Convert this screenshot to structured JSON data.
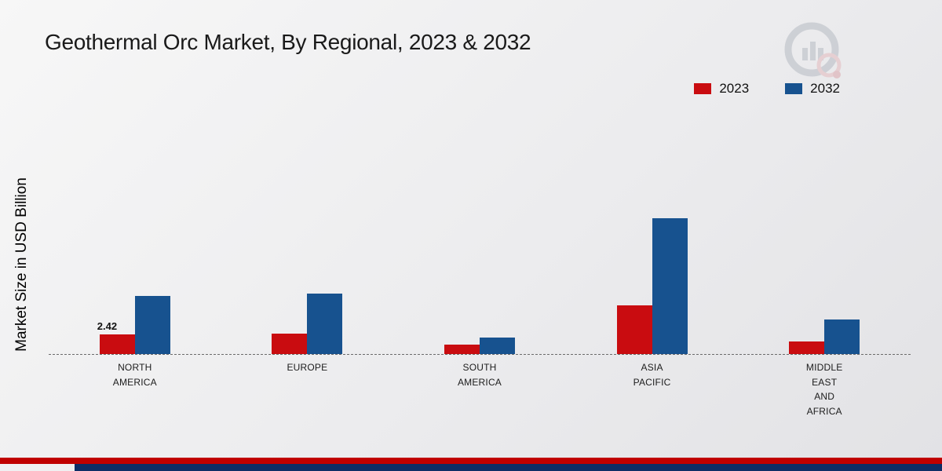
{
  "title": "Geothermal Orc Market, By Regional, 2023 & 2032",
  "y_axis_label": "Market Size in USD Billion",
  "legend": {
    "items": [
      {
        "label": "2023",
        "color": "#c90c10"
      },
      {
        "label": "2032",
        "color": "#17528f"
      }
    ]
  },
  "colors": {
    "bar_2023": "#c90c10",
    "bar_2032": "#17528f",
    "footer_red": "#c00000",
    "footer_navy": "#0d2d66"
  },
  "chart_data": {
    "type": "bar",
    "title": "Geothermal Orc Market, By Regional, 2023 & 2032",
    "xlabel": "",
    "ylabel": "Market Size in USD Billion",
    "categories": [
      "NORTH\nAMERICA",
      "EUROPE",
      "SOUTH\nAMERICA",
      "ASIA\nPACIFIC",
      "MIDDLE\nEAST\nAND\nAFRICA"
    ],
    "series": [
      {
        "name": "2023",
        "color": "#c90c10",
        "values": [
          2.42,
          2.5,
          1.15,
          6.0,
          1.55
        ]
      },
      {
        "name": "2032",
        "color": "#17528f",
        "values": [
          7.2,
          7.5,
          2.0,
          16.7,
          4.3
        ]
      }
    ],
    "data_labels": [
      {
        "series_index": 0,
        "category_index": 0,
        "text": "2.42"
      }
    ],
    "ylim": [
      0,
      18
    ],
    "grid": false,
    "baseline_style": "dashed",
    "legend_position": "top-right"
  }
}
